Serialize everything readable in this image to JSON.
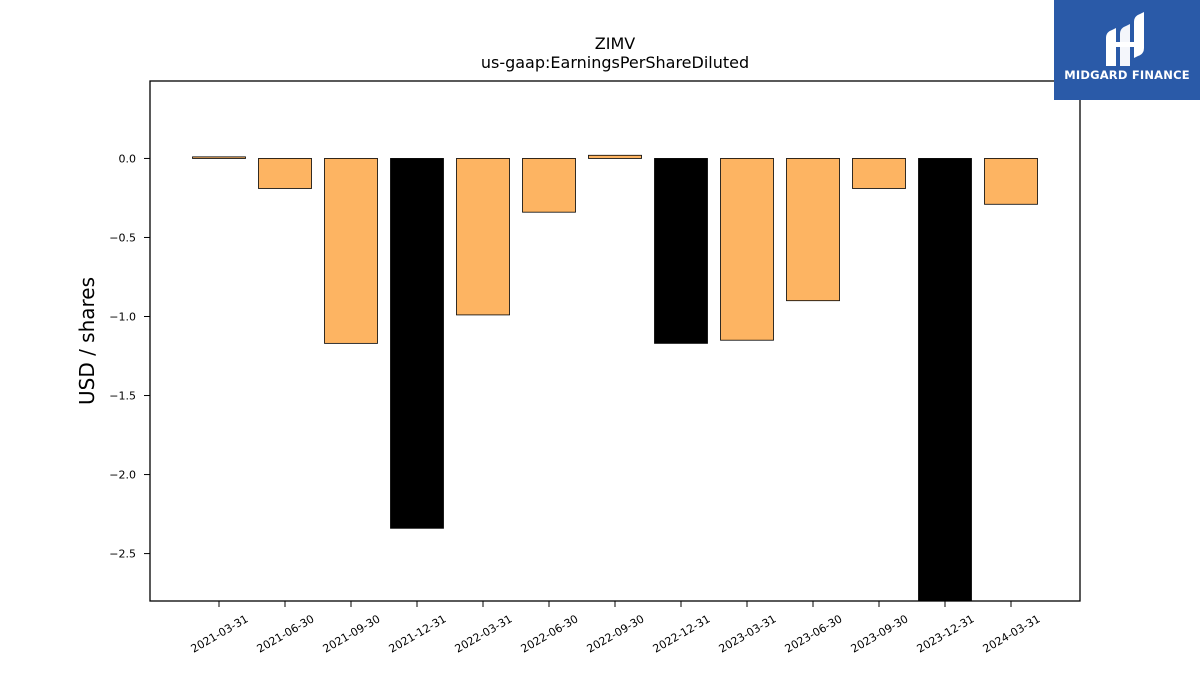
{
  "logo": {
    "text": "MIDGARD FINANCE",
    "bg_color": "#2a5aa8",
    "icon": "midgard-logo-icon"
  },
  "chart_data": {
    "type": "bar",
    "title": "ZIMV",
    "subtitle": "us-gaap:EarningsPerShareDiluted",
    "xlabel": "",
    "ylabel": "USD / shares",
    "ylim": [
      -2.8,
      0.49
    ],
    "yticks": [
      0.0,
      -0.5,
      -1.0,
      -1.5,
      -2.0,
      -2.5
    ],
    "ytick_labels": [
      "0.0",
      "−0.5",
      "−1.0",
      "−1.5",
      "−2.0",
      "−2.5"
    ],
    "categories": [
      "2021-03-31",
      "2021-06-30",
      "2021-09-30",
      "2021-12-31",
      "2022-03-31",
      "2022-06-30",
      "2022-09-30",
      "2022-12-31",
      "2023-03-31",
      "2023-06-30",
      "2023-09-30",
      "2023-12-31",
      "2024-03-31"
    ],
    "values": [
      0.01,
      -0.19,
      -1.17,
      -2.34,
      -0.99,
      -0.34,
      0.02,
      -1.17,
      -1.15,
      -0.9,
      -0.19,
      -2.8,
      -0.29
    ],
    "highlight": [
      false,
      false,
      false,
      true,
      false,
      false,
      false,
      true,
      false,
      false,
      false,
      true,
      false
    ],
    "colors": {
      "default": "#fdb462",
      "highlight": "#000000",
      "edge": "#000000"
    },
    "grid": false,
    "legend": "none"
  }
}
